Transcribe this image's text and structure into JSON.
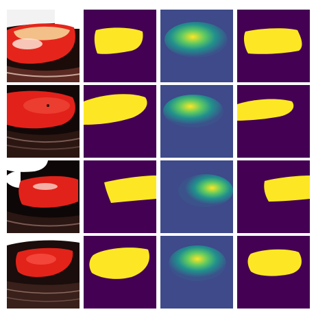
{
  "colors": {
    "mask_background": "#440154",
    "mask_foreground": "#fde725",
    "heat_low": "#3b528b",
    "heat_mid": "#21908d",
    "heat_high": "#fde725",
    "tissue_red": "#e2231a",
    "skin_dark": "#1a0d0a"
  },
  "grid": {
    "rows": 4,
    "columns": [
      "photo",
      "ground-truth-mask",
      "heatmap",
      "predicted-mask"
    ]
  }
}
